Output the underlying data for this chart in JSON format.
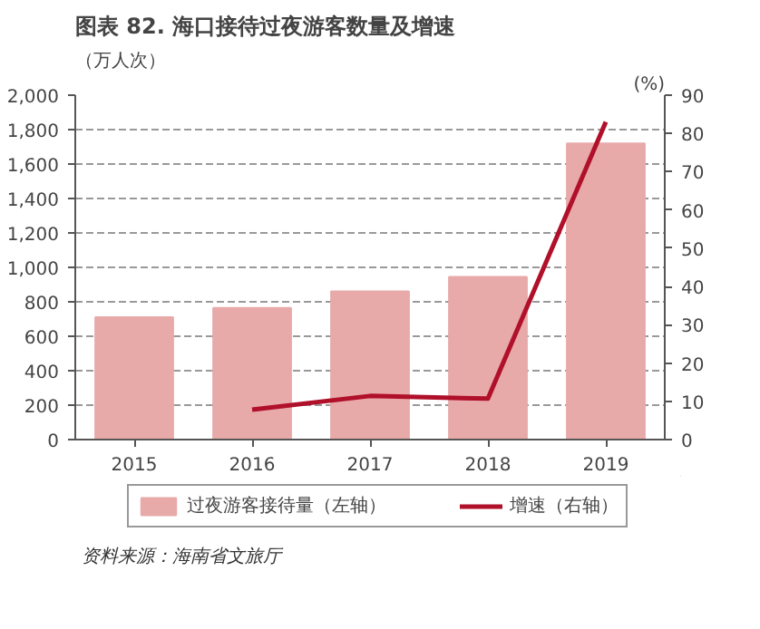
{
  "chart_data": {
    "type": "bar",
    "title": "图表 82. 海口接待过夜游客数量及增速",
    "categories": [
      "2015",
      "2016",
      "2017",
      "2018",
      "2019"
    ],
    "series": [
      {
        "name": "过夜游客接待量（左轴）",
        "color": "#e8a9a9",
        "values": [
          710,
          765,
          860,
          945,
          1720
        ]
      },
      {
        "name": "增速（右轴）",
        "type": "line",
        "axis": "y2",
        "color": "#b0102a",
        "values": [
          null,
          7.8,
          11.4,
          10.7,
          83
        ]
      }
    ],
    "ylabel": "（万人次）",
    "y2label": "(%)",
    "ylim": [
      0,
      2000
    ],
    "yticks": [
      0,
      {
        "value": 200,
        "label": "200"
      },
      {
        "value": 400,
        "label": "400"
      },
      {
        "value": 600,
        "label": "600"
      },
      {
        "value": 800,
        "label": "800"
      },
      {
        "value": 1000,
        "label": "1,000"
      },
      {
        "value": 1200,
        "label": "1,200"
      },
      {
        "value": 1400,
        "label": "1,400"
      },
      {
        "value": 1600,
        "label": "1,600"
      },
      {
        "value": 1800,
        "label": "1,800"
      },
      {
        "value": 2000,
        "label": "2,000"
      }
    ],
    "y2lim": [
      0,
      90
    ],
    "y2ticks": [
      0,
      10,
      20,
      30,
      40,
      50,
      60,
      70,
      80,
      90
    ],
    "grid": "y",
    "legend": "bottom",
    "marker": "none",
    "line_style": "solid",
    "annotations": [
      "资料来源：海南省文旅厅"
    ]
  }
}
